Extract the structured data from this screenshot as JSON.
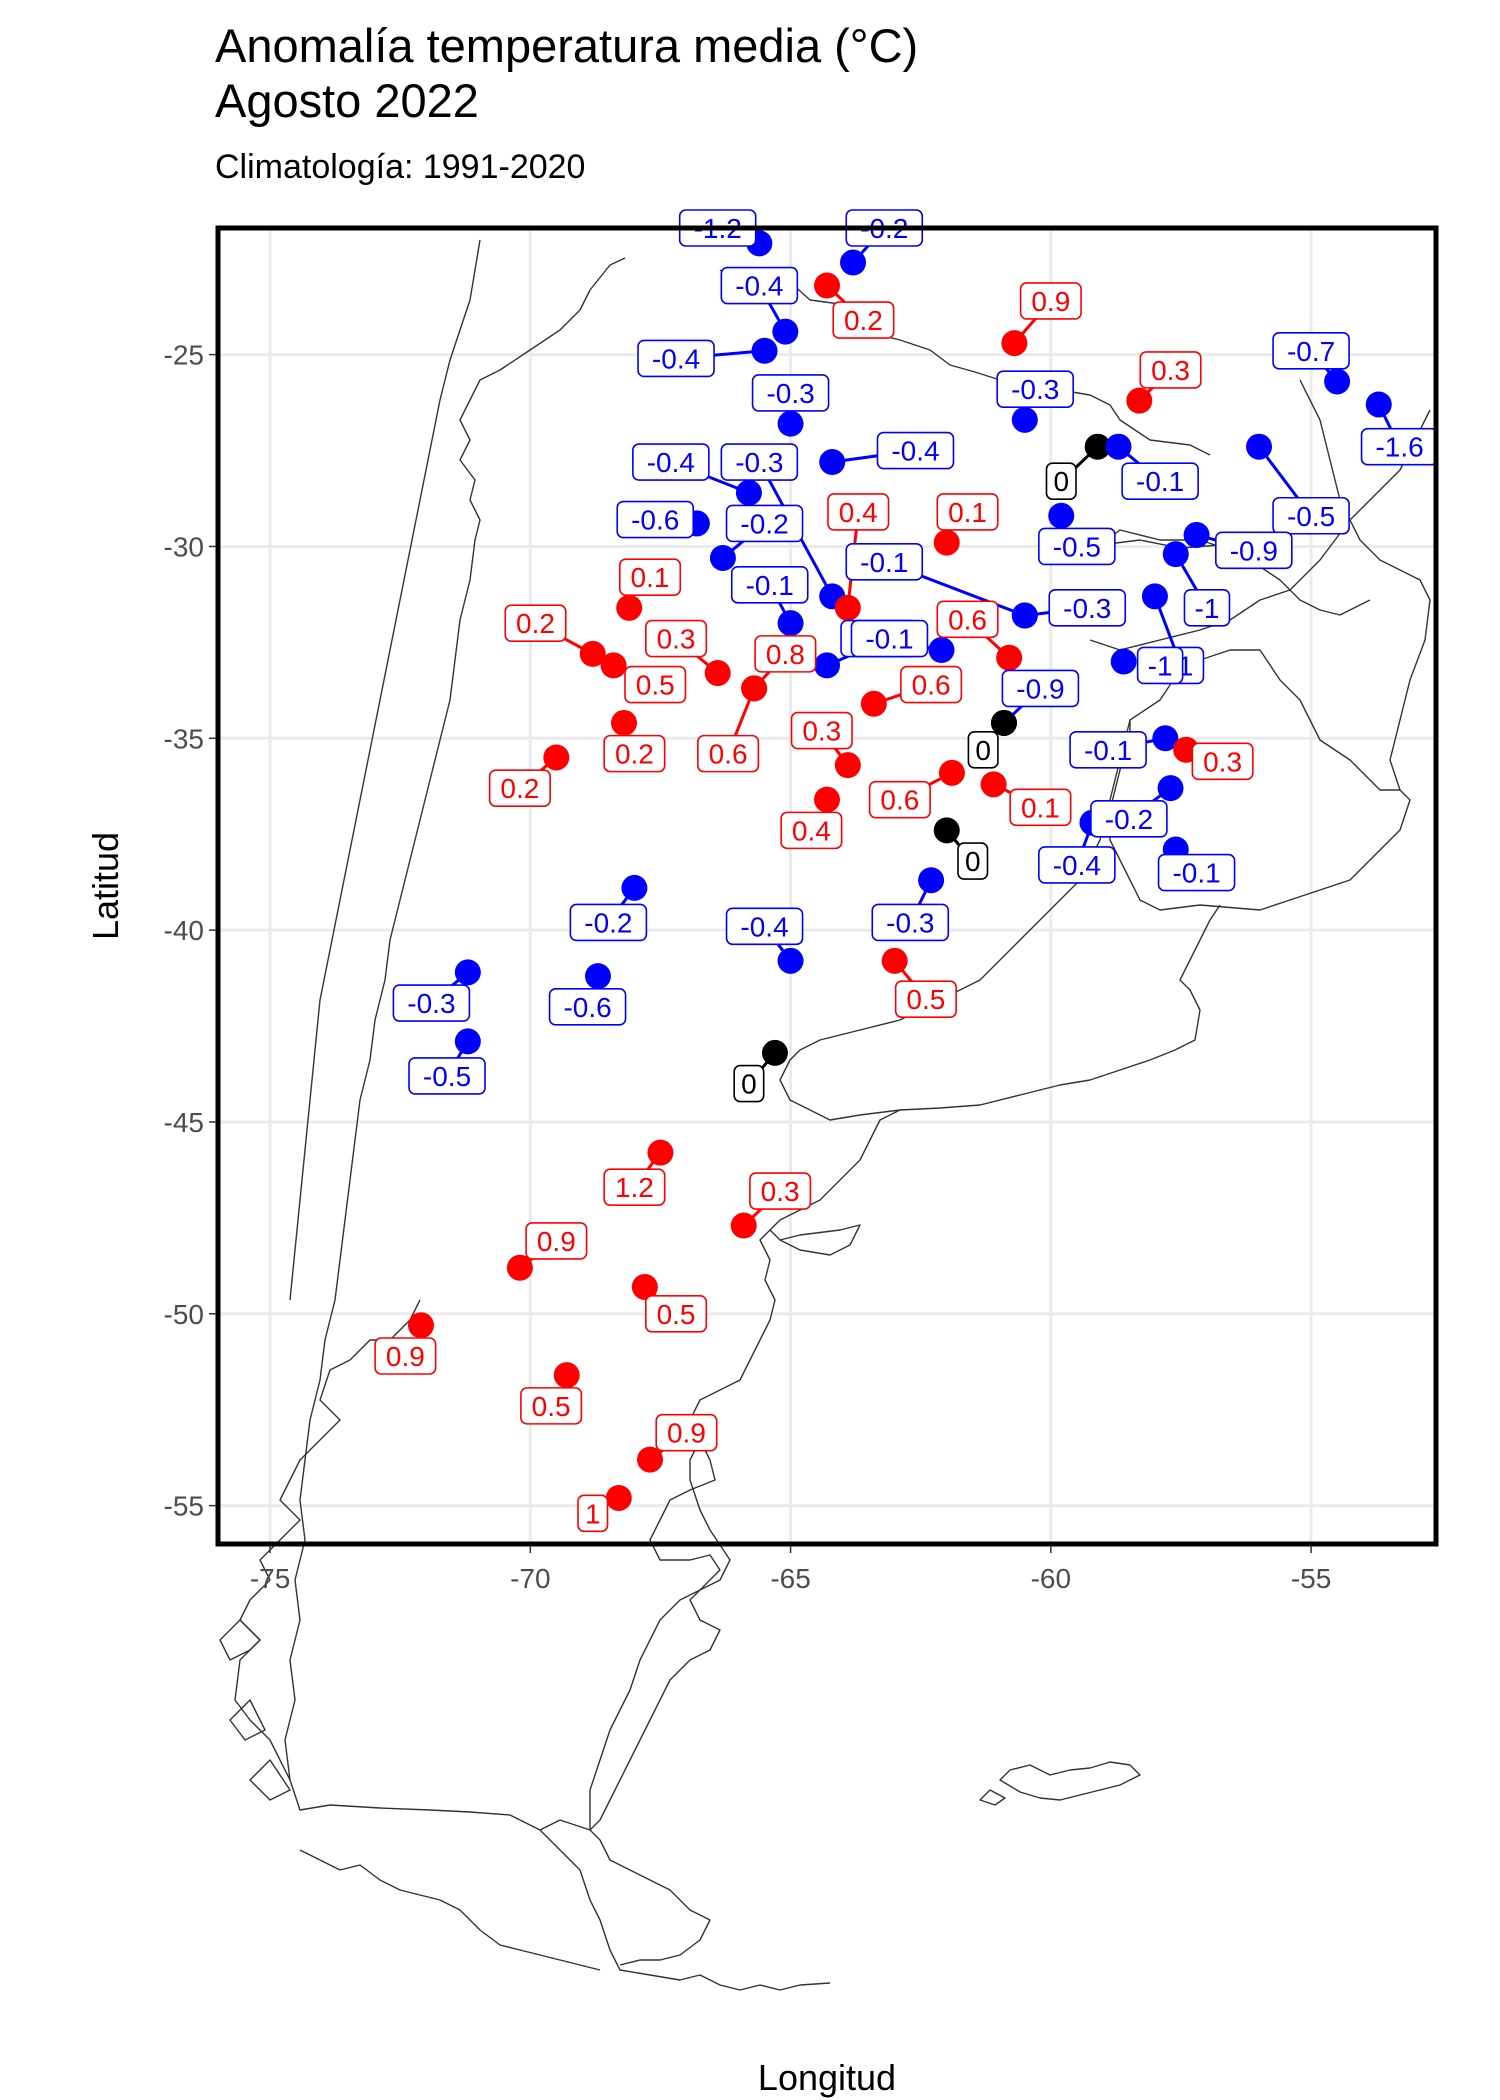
{
  "title_line1": "Anomalía temperatura media (°C)",
  "title_line2": "Agosto 2022",
  "subtitle": "Climatología: 1991-2020",
  "colors": {
    "positive": "#ff0000",
    "negative": "#0000ff",
    "zero": "#000000"
  },
  "chart_data": {
    "type": "scatter",
    "xlabel": "Longitud",
    "ylabel": "Latitud",
    "xlim": [
      -76,
      -52.6
    ],
    "ylim": [
      -56,
      -21.7
    ],
    "x_ticks": [
      -75,
      -70,
      -65,
      -60,
      -55
    ],
    "y_ticks": [
      -25,
      -30,
      -35,
      -40,
      -45,
      -50,
      -55
    ],
    "x_tick_labels": [
      "-75",
      "-70",
      "-65",
      "-60",
      "-55"
    ],
    "y_tick_labels": [
      "-25",
      "-30",
      "-35",
      "-40",
      "-45",
      "-50",
      "-55"
    ],
    "grid": true,
    "stations": [
      {
        "lon": -65.6,
        "lat": -22.1,
        "value": "-1.2",
        "lon_label": -66.4,
        "lat_label": -21.7
      },
      {
        "lon": -63.8,
        "lat": -22.6,
        "value": "-0.2",
        "lon_label": -63.2,
        "lat_label": -21.7
      },
      {
        "lon": -64.3,
        "lat": -23.2,
        "value": "0.2",
        "lon_label": -63.6,
        "lat_label": -24.1
      },
      {
        "lon": -65.1,
        "lat": -24.4,
        "value": "-0.4",
        "lon_label": -65.6,
        "lat_label": -23.2
      },
      {
        "lon": -65.5,
        "lat": -24.9,
        "value": "-0.4",
        "lon_label": -67.2,
        "lat_label": -25.1
      },
      {
        "lon": -60.7,
        "lat": -24.7,
        "value": "0.9",
        "lon_label": -60.0,
        "lat_label": -23.6
      },
      {
        "lon": -58.3,
        "lat": -26.2,
        "value": "0.3",
        "lon_label": -57.7,
        "lat_label": -25.4
      },
      {
        "lon": -54.5,
        "lat": -25.7,
        "value": "-0.7",
        "lon_label": -55.0,
        "lat_label": -24.9
      },
      {
        "lon": -53.7,
        "lat": -26.3,
        "value": "-1.6",
        "lon_label": -53.3,
        "lat_label": -27.4
      },
      {
        "lon": -65.0,
        "lat": -26.8,
        "value": "-0.3",
        "lon_label": -65.0,
        "lat_label": -26.0
      },
      {
        "lon": -60.5,
        "lat": -26.7,
        "value": "-0.3",
        "lon_label": -60.3,
        "lat_label": -25.9
      },
      {
        "lon": -59.1,
        "lat": -27.4,
        "value": "0",
        "lon_label": -59.8,
        "lat_label": -28.3
      },
      {
        "lon": -58.7,
        "lat": -27.4,
        "value": "-0.1",
        "lon_label": -57.9,
        "lat_label": -28.3
      },
      {
        "lon": -56.0,
        "lat": -27.4,
        "value": "-0.5",
        "lon_label": -55.0,
        "lat_label": -29.2
      },
      {
        "lon": -64.2,
        "lat": -27.8,
        "value": "-0.4",
        "lon_label": -62.6,
        "lat_label": -27.5
      },
      {
        "lon": -65.8,
        "lat": -28.6,
        "value": "-0.4",
        "lon_label": -67.3,
        "lat_label": -27.8
      },
      {
        "lon": -64.2,
        "lat": -31.3,
        "value": "-0.3",
        "lon_label": -65.6,
        "lat_label": -27.8
      },
      {
        "lon": -66.8,
        "lat": -29.4,
        "value": "-0.6",
        "lon_label": -67.6,
        "lat_label": -29.3
      },
      {
        "lon": -66.3,
        "lat": -30.3,
        "value": "-0.2",
        "lon_label": -65.5,
        "lat_label": -29.4
      },
      {
        "lon": -65.0,
        "lat": -32.0,
        "value": "-0.1",
        "lon_label": -65.4,
        "lat_label": -31.0
      },
      {
        "lon": -63.9,
        "lat": -31.6,
        "value": "0.4",
        "lon_label": -63.7,
        "lat_label": -29.1
      },
      {
        "lon": -62.0,
        "lat": -29.9,
        "value": "0.1",
        "lon_label": -61.6,
        "lat_label": -29.1
      },
      {
        "lon": -59.8,
        "lat": -29.2,
        "value": "-0.5",
        "lon_label": -59.5,
        "lat_label": -30.0
      },
      {
        "lon": -57.2,
        "lat": -29.7,
        "value": "-0.9",
        "lon_label": -56.1,
        "lat_label": -30.1
      },
      {
        "lon": -57.6,
        "lat": -30.2,
        "value": "-1",
        "lon_label": -57.0,
        "lat_label": -31.6
      },
      {
        "lon": -58.0,
        "lat": -31.3,
        "value": "-1",
        "lon_label": -57.5,
        "lat_label": -33.1
      },
      {
        "lon": -60.5,
        "lat": -31.8,
        "value": "-0.1",
        "lon_label": -63.2,
        "lat_label": -30.4
      },
      {
        "lon": -60.5,
        "lat": -31.8,
        "value": "-0.3",
        "lon_label": -59.3,
        "lat_label": -31.6
      },
      {
        "lon": -62.1,
        "lat": -32.7,
        "value": "-0.1",
        "lon_label": -63.3,
        "lat_label": -32.4
      },
      {
        "lon": -60.8,
        "lat": -32.9,
        "value": "0.6",
        "lon_label": -61.6,
        "lat_label": -31.9
      },
      {
        "lon": -58.6,
        "lat": -33.0,
        "value": "-1",
        "lon_label": -57.9,
        "lat_label": -33.1
      },
      {
        "lon": -68.1,
        "lat": -31.6,
        "value": "0.1",
        "lon_label": -67.7,
        "lat_label": -30.8
      },
      {
        "lon": -68.8,
        "lat": -32.8,
        "value": "0.2",
        "lon_label": -69.9,
        "lat_label": -32.0
      },
      {
        "lon": -68.4,
        "lat": -33.1,
        "value": "0.5",
        "lon_label": -67.6,
        "lat_label": -33.6
      },
      {
        "lon": -66.4,
        "lat": -33.3,
        "value": "0.3",
        "lon_label": -67.2,
        "lat_label": -32.4
      },
      {
        "lon": -65.7,
        "lat": -33.7,
        "value": "0.8",
        "lon_label": -65.1,
        "lat_label": -32.8
      },
      {
        "lon": -64.3,
        "lat": -33.1,
        "value": "-0.1",
        "lon_label": -63.1,
        "lat_label": -32.4
      },
      {
        "lon": -63.4,
        "lat": -34.1,
        "value": "0.6",
        "lon_label": -62.3,
        "lat_label": -33.6
      },
      {
        "lon": -60.9,
        "lat": -34.6,
        "value": "-0.9",
        "lon_label": -60.2,
        "lat_label": -33.7
      },
      {
        "lon": -68.2,
        "lat": -34.6,
        "value": "0.2",
        "lon_label": -68.0,
        "lat_label": -35.4
      },
      {
        "lon": -69.5,
        "lat": -35.5,
        "value": "0.2",
        "lon_label": -70.2,
        "lat_label": -36.3
      },
      {
        "lon": -65.7,
        "lat": -33.7,
        "value": "0.6",
        "lon_label": -66.2,
        "lat_label": -35.4
      },
      {
        "lon": -63.9,
        "lat": -35.7,
        "value": "0.3",
        "lon_label": -64.4,
        "lat_label": -34.8
      },
      {
        "lon": -60.9,
        "lat": -34.6,
        "value": "0",
        "lon_label": -61.3,
        "lat_label": -35.3
      },
      {
        "lon": -57.8,
        "lat": -35.0,
        "value": "-0.1",
        "lon_label": -58.9,
        "lat_label": -35.3
      },
      {
        "lon": -57.4,
        "lat": -35.3,
        "value": "0.3",
        "lon_label": -56.7,
        "lat_label": -35.6
      },
      {
        "lon": -64.3,
        "lat": -36.6,
        "value": "0.4",
        "lon_label": -64.6,
        "lat_label": -37.4
      },
      {
        "lon": -61.9,
        "lat": -35.9,
        "value": "0.6",
        "lon_label": -62.9,
        "lat_label": -36.6
      },
      {
        "lon": -61.1,
        "lat": -36.2,
        "value": "0.1",
        "lon_label": -60.2,
        "lat_label": -36.8
      },
      {
        "lon": -57.7,
        "lat": -36.3,
        "value": "-0.2",
        "lon_label": -58.5,
        "lat_label": -37.1
      },
      {
        "lon": -59.2,
        "lat": -37.2,
        "value": "-0.4",
        "lon_label": -59.5,
        "lat_label": -38.3
      },
      {
        "lon": -62.0,
        "lat": -37.4,
        "value": "0",
        "lon_label": -61.5,
        "lat_label": -38.2
      },
      {
        "lon": -57.6,
        "lat": -37.9,
        "value": "-0.1",
        "lon_label": -57.2,
        "lat_label": -38.5
      },
      {
        "lon": -68.0,
        "lat": -38.9,
        "value": "-0.2",
        "lon_label": -68.5,
        "lat_label": -39.8
      },
      {
        "lon": -62.3,
        "lat": -38.7,
        "value": "-0.3",
        "lon_label": -62.7,
        "lat_label": -39.8
      },
      {
        "lon": -65.0,
        "lat": -40.8,
        "value": "-0.4",
        "lon_label": -65.5,
        "lat_label": -39.9
      },
      {
        "lon": -63.0,
        "lat": -40.8,
        "value": "0.5",
        "lon_label": -62.4,
        "lat_label": -41.8
      },
      {
        "lon": -71.2,
        "lat": -41.1,
        "value": "-0.3",
        "lon_label": -71.9,
        "lat_label": -41.9
      },
      {
        "lon": -68.7,
        "lat": -41.2,
        "value": "-0.6",
        "lon_label": -68.9,
        "lat_label": -42.0
      },
      {
        "lon": -71.2,
        "lat": -42.9,
        "value": "-0.5",
        "lon_label": -71.6,
        "lat_label": -43.8
      },
      {
        "lon": -65.3,
        "lat": -43.2,
        "value": "0",
        "lon_label": -65.8,
        "lat_label": -44.0
      },
      {
        "lon": -67.5,
        "lat": -45.8,
        "value": "1.2",
        "lon_label": -68.0,
        "lat_label": -46.7
      },
      {
        "lon": -65.9,
        "lat": -47.7,
        "value": "0.3",
        "lon_label": -65.2,
        "lat_label": -46.8
      },
      {
        "lon": -70.2,
        "lat": -48.8,
        "value": "0.9",
        "lon_label": -69.5,
        "lat_label": -48.1
      },
      {
        "lon": -67.8,
        "lat": -49.3,
        "value": "0.5",
        "lon_label": -67.2,
        "lat_label": -50.0
      },
      {
        "lon": -72.1,
        "lat": -50.3,
        "value": "0.9",
        "lon_label": -72.4,
        "lat_label": -51.1
      },
      {
        "lon": -69.3,
        "lat": -51.6,
        "value": "0.5",
        "lon_label": -69.6,
        "lat_label": -52.4
      },
      {
        "lon": -67.7,
        "lat": -53.8,
        "value": "0.9",
        "lon_label": -67.0,
        "lat_label": -53.1
      },
      {
        "lon": -68.3,
        "lat": -54.8,
        "value": "1",
        "lon_label": -68.8,
        "lat_label": -55.2
      }
    ]
  }
}
